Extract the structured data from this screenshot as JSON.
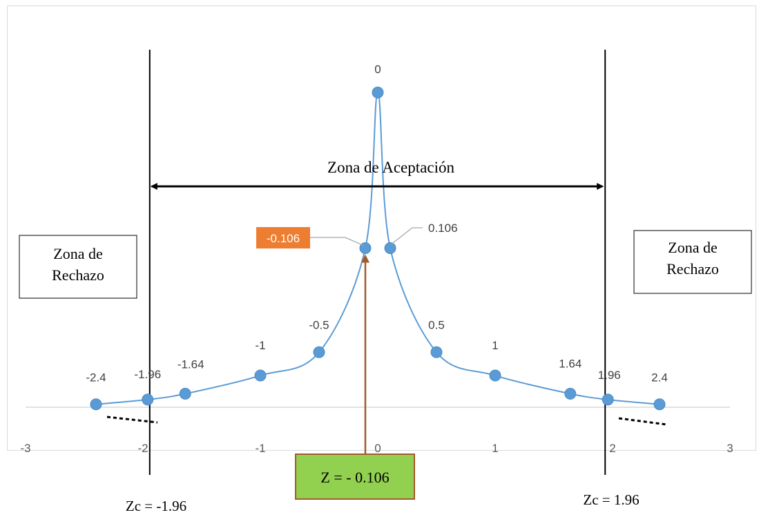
{
  "chart_data": {
    "type": "scatter",
    "title": "",
    "xlabel": "",
    "ylabel": "",
    "xlim": [
      -3,
      3
    ],
    "x_ticks": [
      -3,
      -2,
      -1,
      0,
      1,
      2,
      3
    ],
    "x_tick_labels": [
      "-3",
      "-2",
      "-1",
      "0",
      "1",
      "2",
      "3"
    ],
    "y_axis_visible": false,
    "grid": false,
    "legend": "none",
    "series": [
      {
        "color": "#5b9bd5",
        "smooth": true,
        "points": [
          {
            "x": -2.4,
            "y": 0.0224,
            "label": "-2.4"
          },
          {
            "x": -1.96,
            "y": 0.0584,
            "label": "-1.96"
          },
          {
            "x": -1.64,
            "y": 0.1031,
            "label": "-1.64"
          },
          {
            "x": -1,
            "y": 0.242,
            "label": "-1"
          },
          {
            "x": -0.5,
            "y": 0.4196,
            "label": "-0.5"
          },
          {
            "x": -0.106,
            "y": 1.213,
            "label": "-0.106"
          },
          {
            "x": 0,
            "y": 2.4,
            "label": "0"
          },
          {
            "x": 0.106,
            "y": 1.213,
            "label": "0.106"
          },
          {
            "x": 0.5,
            "y": 0.4196,
            "label": "0.5"
          },
          {
            "x": 1,
            "y": 0.242,
            "label": "1"
          },
          {
            "x": 1.64,
            "y": 0.1031,
            "label": "1.64"
          },
          {
            "x": 1.96,
            "y": 0.0584,
            "label": "1.96"
          },
          {
            "x": 2.4,
            "y": 0.0224,
            "label": "2.4"
          }
        ]
      }
    ],
    "annotations": {
      "acceptance_zone": "Zona de Aceptación",
      "rejection_left": [
        "Zona de",
        "Rechazo"
      ],
      "rejection_right": [
        "Zona de",
        "Rechazo"
      ],
      "z_value_box": "Z = - 0.106",
      "critical_left": "Zc = -1.96",
      "critical_right": "Zc = 1.96",
      "critical_values": [
        -1.96,
        1.96
      ],
      "z_value": -0.106,
      "highlight_color": "#ed7d31",
      "z_box_color": "#92d050",
      "arrow_color": "#a5592b"
    }
  }
}
